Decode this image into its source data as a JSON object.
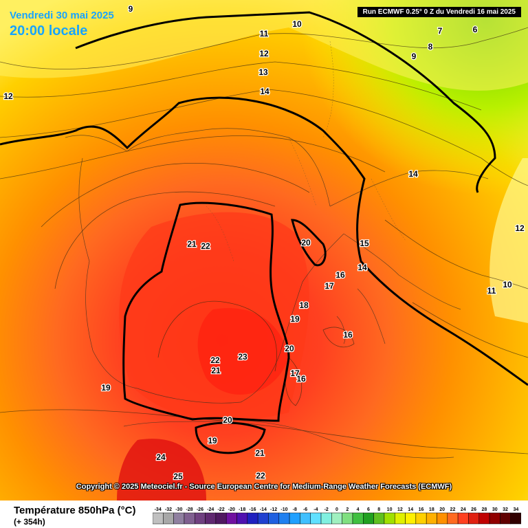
{
  "header": {
    "date": "Vendredi 30 mai 2025",
    "time": "20:00 locale",
    "run_info": "Run ECMWF 0.25° 0 Z du Vendredi 16 mai 2025"
  },
  "copyright": "Copyright © 2025 Meteociel.fr - Source European Centre for Medium-Range Weather Forecasts (ECMWF)",
  "legend": {
    "parameter": "Température 850hPa (°C)",
    "lead_time": "(+ 354h)",
    "scale_values": [
      "-34",
      "-32",
      "-30",
      "-28",
      "-26",
      "-24",
      "-22",
      "-20",
      "-18",
      "-16",
      "-14",
      "-12",
      "-10",
      "-8",
      "-6",
      "-4",
      "-2",
      "0",
      "2",
      "4",
      "6",
      "8",
      "10",
      "12",
      "14",
      "16",
      "18",
      "20",
      "22",
      "24",
      "26",
      "28",
      "30",
      "32",
      "34"
    ],
    "scale_colors": [
      "#c0c0c0",
      "#a8a8a8",
      "#9080a0",
      "#806090",
      "#704080",
      "#602870",
      "#501860",
      "#7010a0",
      "#5010b0",
      "#2020c0",
      "#2040d0",
      "#2060e0",
      "#2080f0",
      "#20a0ff",
      "#40c0ff",
      "#60e0ff",
      "#80f0e0",
      "#a0f0c0",
      "#80e080",
      "#40c040",
      "#20a020",
      "#60c020",
      "#a0e000",
      "#e0f000",
      "#fff000",
      "#ffd000",
      "#ffb000",
      "#ff9000",
      "#ff6a20",
      "#ff4020",
      "#e02010",
      "#c00000",
      "#900000",
      "#600000",
      "#300000"
    ]
  },
  "map": {
    "field": "temperature_850hPa",
    "isotherm_labels": [
      {
        "v": "9"
      },
      {
        "v": "10"
      },
      {
        "v": "11"
      },
      {
        "v": "12"
      },
      {
        "v": "13"
      },
      {
        "v": "14"
      },
      {
        "v": "12"
      },
      {
        "v": "7"
      },
      {
        "v": "8"
      },
      {
        "v": "9"
      },
      {
        "v": "6"
      },
      {
        "v": "14"
      },
      {
        "v": "12"
      },
      {
        "v": "11"
      },
      {
        "v": "10"
      },
      {
        "v": "21"
      },
      {
        "v": "22"
      },
      {
        "v": "20"
      },
      {
        "v": "15"
      },
      {
        "v": "14"
      },
      {
        "v": "16"
      },
      {
        "v": "17"
      },
      {
        "v": "18"
      },
      {
        "v": "19"
      },
      {
        "v": "16"
      },
      {
        "v": "20"
      },
      {
        "v": "22"
      },
      {
        "v": "23"
      },
      {
        "v": "21"
      },
      {
        "v": "17"
      },
      {
        "v": "16"
      },
      {
        "v": "19"
      },
      {
        "v": "20"
      },
      {
        "v": "19"
      },
      {
        "v": "21"
      },
      {
        "v": "24"
      },
      {
        "v": "25"
      },
      {
        "v": "22"
      }
    ]
  }
}
